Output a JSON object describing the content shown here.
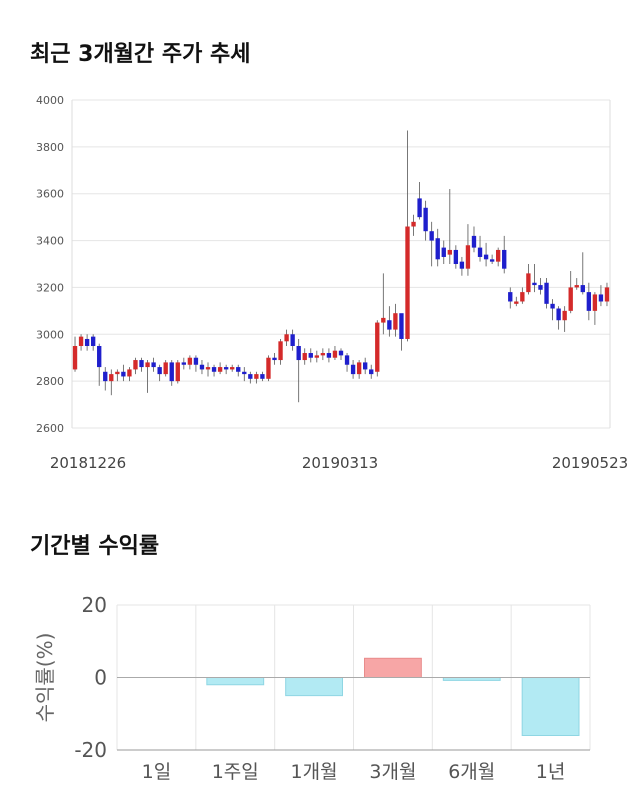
{
  "sections": {
    "price_title": "최근 3개월간 주가 추세",
    "return_title": "기간별 수익률"
  },
  "colors": {
    "up": "#d42a2a",
    "down": "#1f1fcc",
    "wick": "#555555",
    "grid": "#e5e5e5",
    "bar_positive": "#f7a6a6",
    "bar_negative": "#b2eaf3",
    "bar_negative_stroke": "#8fd6e3",
    "bar_positive_stroke": "#e88c8c"
  },
  "chart_data": [
    {
      "type": "candlestick",
      "title": "최근 3개월간 주가 추세",
      "ylim": [
        2600,
        4000
      ],
      "yticks": [
        "4000",
        "3800",
        "3600",
        "3400",
        "3200",
        "3000",
        "2800",
        "2600"
      ],
      "xtick_labels": [
        "20181226",
        "20190313",
        "20190523"
      ],
      "grid": true,
      "candles": [
        [
          2850,
          2950,
          2990,
          2840
        ],
        [
          2950,
          2990,
          3000,
          2930
        ],
        [
          2980,
          2950,
          3000,
          2930
        ],
        [
          2990,
          2950,
          3000,
          2930
        ],
        [
          2950,
          2860,
          2960,
          2780
        ],
        [
          2840,
          2800,
          2860,
          2760
        ],
        [
          2800,
          2830,
          2850,
          2740
        ],
        [
          2830,
          2840,
          2850,
          2800
        ],
        [
          2840,
          2820,
          2870,
          2800
        ],
        [
          2820,
          2850,
          2860,
          2800
        ],
        [
          2850,
          2890,
          2900,
          2830
        ],
        [
          2890,
          2860,
          2900,
          2840
        ],
        [
          2860,
          2880,
          2890,
          2750
        ],
        [
          2880,
          2860,
          2900,
          2840
        ],
        [
          2860,
          2830,
          2870,
          2800
        ],
        [
          2830,
          2880,
          2890,
          2820
        ],
        [
          2880,
          2800,
          2890,
          2780
        ],
        [
          2800,
          2880,
          2890,
          2790
        ],
        [
          2880,
          2870,
          2900,
          2850
        ],
        [
          2870,
          2900,
          2910,
          2850
        ],
        [
          2900,
          2870,
          2910,
          2840
        ],
        [
          2870,
          2850,
          2890,
          2830
        ],
        [
          2850,
          2860,
          2880,
          2820
        ],
        [
          2860,
          2840,
          2870,
          2820
        ],
        [
          2840,
          2860,
          2880,
          2830
        ],
        [
          2860,
          2850,
          2870,
          2830
        ],
        [
          2850,
          2860,
          2870,
          2840
        ],
        [
          2860,
          2840,
          2870,
          2820
        ],
        [
          2840,
          2830,
          2860,
          2800
        ],
        [
          2830,
          2810,
          2840,
          2790
        ],
        [
          2810,
          2830,
          2840,
          2790
        ],
        [
          2830,
          2810,
          2840,
          2800
        ],
        [
          2810,
          2900,
          2910,
          2800
        ],
        [
          2900,
          2890,
          2920,
          2870
        ],
        [
          2890,
          2970,
          2980,
          2870
        ],
        [
          2970,
          3000,
          3020,
          2950
        ],
        [
          3000,
          2950,
          3020,
          2930
        ],
        [
          2950,
          2890,
          2980,
          2710
        ],
        [
          2890,
          2920,
          2940,
          2870
        ],
        [
          2920,
          2900,
          2940,
          2880
        ],
        [
          2900,
          2910,
          2930,
          2880
        ],
        [
          2910,
          2920,
          2940,
          2890
        ],
        [
          2920,
          2900,
          2940,
          2880
        ],
        [
          2900,
          2930,
          2950,
          2890
        ],
        [
          2930,
          2910,
          2940,
          2890
        ],
        [
          2910,
          2870,
          2920,
          2840
        ],
        [
          2870,
          2830,
          2890,
          2810
        ],
        [
          2830,
          2880,
          2890,
          2810
        ],
        [
          2880,
          2850,
          2900,
          2830
        ],
        [
          2850,
          2830,
          2870,
          2810
        ],
        [
          2840,
          3050,
          3060,
          2820
        ],
        [
          3050,
          3070,
          3260,
          3000
        ],
        [
          3060,
          3020,
          3120,
          2990
        ],
        [
          3020,
          3090,
          3130,
          2990
        ],
        [
          3090,
          2980,
          3000,
          2930
        ],
        [
          2980,
          3460,
          3870,
          2970
        ],
        [
          3460,
          3480,
          3510,
          3420
        ],
        [
          3580,
          3500,
          3650,
          3490
        ],
        [
          3540,
          3440,
          3570,
          3400
        ],
        [
          3440,
          3400,
          3480,
          3290
        ],
        [
          3410,
          3320,
          3450,
          3290
        ],
        [
          3370,
          3330,
          3400,
          3300
        ],
        [
          3340,
          3360,
          3620,
          3300
        ],
        [
          3360,
          3300,
          3380,
          3280
        ],
        [
          3310,
          3280,
          3330,
          3250
        ],
        [
          3280,
          3380,
          3470,
          3250
        ],
        [
          3420,
          3370,
          3460,
          3350
        ],
        [
          3370,
          3330,
          3420,
          3310
        ],
        [
          3340,
          3320,
          3390,
          3290
        ],
        [
          3320,
          3310,
          3340,
          3300
        ],
        [
          3310,
          3360,
          3370,
          3290
        ],
        [
          3360,
          3280,
          3420,
          3260
        ],
        [
          3180,
          3140,
          3200,
          3110
        ],
        [
          3130,
          3140,
          3160,
          3120
        ],
        [
          3140,
          3180,
          3200,
          3130
        ],
        [
          3180,
          3260,
          3300,
          3170
        ],
        [
          3220,
          3210,
          3300,
          3180
        ],
        [
          3210,
          3190,
          3240,
          3170
        ],
        [
          3220,
          3130,
          3240,
          3110
        ],
        [
          3130,
          3110,
          3150,
          3060
        ],
        [
          3110,
          3060,
          3120,
          3020
        ],
        [
          3060,
          3100,
          3120,
          3010
        ],
        [
          3100,
          3200,
          3270,
          3090
        ],
        [
          3200,
          3210,
          3240,
          3190
        ],
        [
          3210,
          3180,
          3350,
          3170
        ],
        [
          3180,
          3100,
          3220,
          3060
        ],
        [
          3100,
          3170,
          3180,
          3040
        ],
        [
          3170,
          3140,
          3210,
          3120
        ],
        [
          3140,
          3200,
          3220,
          3120
        ]
      ]
    },
    {
      "type": "bar",
      "title": "기간별 수익률",
      "ylabel": "수익률(%)",
      "ylim": [
        -20,
        20
      ],
      "yticks": [
        "20",
        "0",
        "-20"
      ],
      "categories": [
        "1일",
        "1주일",
        "1개월",
        "3개월",
        "6개월",
        "1년"
      ],
      "values": [
        0,
        -2,
        -5,
        5.3,
        -0.8,
        -16
      ]
    }
  ]
}
